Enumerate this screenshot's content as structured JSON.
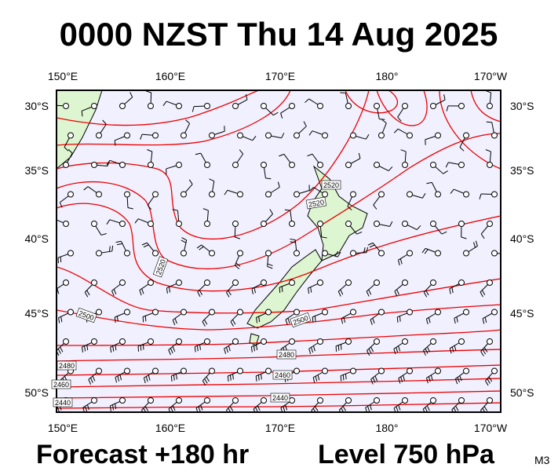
{
  "header": {
    "title": "0000 NZST Thu 14 Aug 2025"
  },
  "map": {
    "lon_labels": [
      "150°E",
      "160°E",
      "170°E",
      "180°",
      "170°W"
    ],
    "lat_labels": [
      "30°S",
      "35°S",
      "40°S",
      "45°S",
      "50°S"
    ],
    "contour_labels": [
      "2520",
      "2520",
      "2520",
      "2500",
      "2500",
      "2480",
      "2480",
      "2460",
      "2460",
      "2440",
      "2440"
    ]
  },
  "footer": {
    "forecast": "Forecast +180 hr",
    "level": "Level 750 hPa",
    "code": "M3"
  }
}
